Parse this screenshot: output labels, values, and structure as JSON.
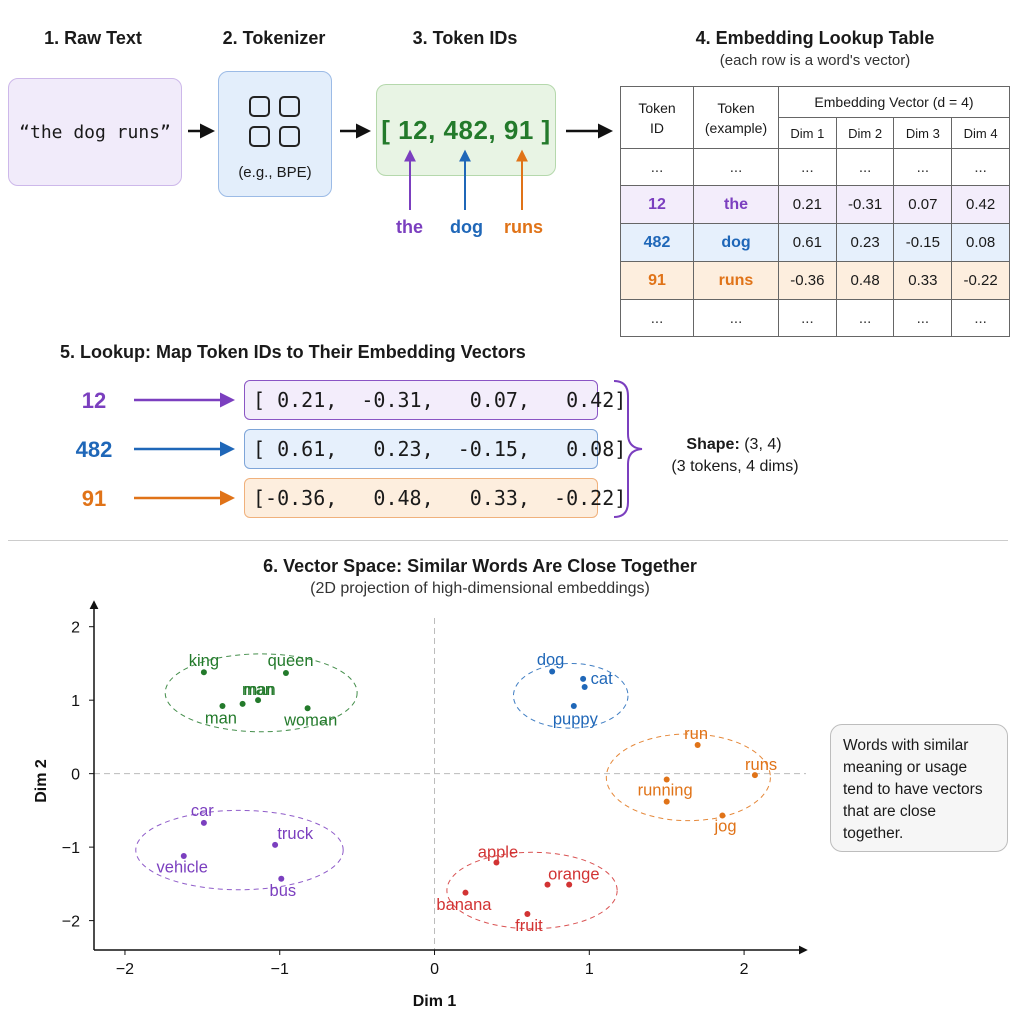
{
  "steps": {
    "raw_text": {
      "title": "1. Raw Text",
      "content": "“the dog runs”"
    },
    "tokenizer": {
      "title": "2. Tokenizer",
      "label": "(e.g., BPE)"
    },
    "token_ids": {
      "title": "3. Token IDs",
      "content": "[ 12, 482, 91 ]",
      "words": [
        "the",
        "dog",
        "runs"
      ]
    },
    "table": {
      "title": "4. Embedding Lookup Table",
      "subtitle": "(each row is a word's vector)",
      "headers": {
        "token_id": "Token ID",
        "token_example": "Token (example)",
        "embedding": "Embedding Vector (d = 4)",
        "dims": [
          "Dim 1",
          "Dim 2",
          "Dim 3",
          "Dim 4"
        ]
      },
      "ellipsis": "...",
      "rows": [
        {
          "id": "12",
          "token": "the",
          "values": [
            "0.21",
            "-0.31",
            "0.07",
            "0.42"
          ]
        },
        {
          "id": "482",
          "token": "dog",
          "values": [
            "0.61",
            "0.23",
            "-0.15",
            "0.08"
          ]
        },
        {
          "id": "91",
          "token": "runs",
          "values": [
            "-0.36",
            "0.48",
            "0.33",
            "-0.22"
          ]
        }
      ]
    },
    "lookup": {
      "title": "5. Lookup: Map Token IDs to Their Embedding Vectors",
      "rows": [
        {
          "id": "12",
          "vector": "[ 0.21,  -0.31,   0.07,   0.42]"
        },
        {
          "id": "482",
          "vector": "[ 0.61,   0.23,  -0.15,   0.08]"
        },
        {
          "id": "91",
          "vector": "[-0.36,   0.48,   0.33,  -0.22]"
        }
      ],
      "shape_label": "Shape:",
      "shape_value": "(3, 4)",
      "shape_note": "(3 tokens, 4 dims)"
    },
    "vector_space": {
      "title": "6. Vector Space: Similar Words Are Close Together",
      "subtitle": "(2D projection of high-dimensional embeddings)",
      "note": "Words with similar meaning or usage tend to have vectors that are close together."
    }
  },
  "colors": {
    "purple": "#7b3fbf",
    "blue": "#1f67b8",
    "orange": "#e07318",
    "green": "#237a2b",
    "red": "#d23333"
  },
  "chart_data": {
    "type": "scatter",
    "xlabel": "Dim 1",
    "ylabel": "Dim 2",
    "xlim": [
      -2.2,
      2.4
    ],
    "ylim": [
      -2.4,
      2.2
    ],
    "xticks": [
      -2,
      -1,
      0,
      1,
      2
    ],
    "yticks": [
      -2,
      -1,
      0,
      1,
      2
    ],
    "tick_labels_x": [
      "−2",
      "−1",
      "0",
      "1",
      "2"
    ],
    "tick_labels_y": [
      "−2",
      "−1",
      "0",
      "1",
      "2"
    ],
    "clusters": [
      {
        "color": "#237a2b",
        "center": [
          -1.12,
          1.1
        ],
        "radius": [
          0.62,
          0.53
        ],
        "points": [
          {
            "label": "king",
            "x": -1.49,
            "y": 1.38,
            "lx": -1.49,
            "ly": 1.53
          },
          {
            "label": "queen",
            "x": -0.96,
            "y": 1.37,
            "lx": -0.93,
            "ly": 1.53
          },
          {
            "label": "man",
            "x": -1.24,
            "y": 0.95,
            "lx": -1.13,
            "ly": 1.14
          },
          {
            "label": "man",
            "x": -1.14,
            "y": 1.0,
            "lx": -1.14,
            "ly": 1.14
          },
          {
            "label": "man",
            "x": -1.37,
            "y": 0.92,
            "lx": -1.38,
            "ly": 0.75
          },
          {
            "label": "woman",
            "x": -0.82,
            "y": 0.89,
            "lx": -0.8,
            "ly": 0.72
          }
        ]
      },
      {
        "color": "#1f67b8",
        "center": [
          0.88,
          1.06
        ],
        "radius": [
          0.37,
          0.44
        ],
        "points": [
          {
            "label": "dog",
            "x": 0.76,
            "y": 1.39,
            "lx": 0.75,
            "ly": 1.55
          },
          {
            "label": "cat",
            "x": 0.96,
            "y": 1.29,
            "lx": 1.08,
            "ly": 1.29
          },
          {
            "label": "cat",
            "x": 0.97,
            "y": 1.18,
            "lx": 1.08,
            "ly": 1.29
          },
          {
            "label": "puppy",
            "x": 0.9,
            "y": 0.92,
            "lx": 0.91,
            "ly": 0.74
          }
        ]
      },
      {
        "color": "#e07318",
        "center": [
          1.64,
          -0.05
        ],
        "radius": [
          0.53,
          0.59
        ],
        "points": [
          {
            "label": "run",
            "x": 1.7,
            "y": 0.39,
            "lx": 1.69,
            "ly": 0.54
          },
          {
            "label": "runs",
            "x": 2.07,
            "y": -0.02,
            "lx": 2.11,
            "ly": 0.12
          },
          {
            "label": "running",
            "x": 1.5,
            "y": -0.08,
            "lx": 1.49,
            "ly": -0.23
          },
          {
            "label": "running",
            "x": 1.5,
            "y": -0.38,
            "lx": 1.49,
            "ly": -0.23
          },
          {
            "label": "jog",
            "x": 1.86,
            "y": -0.57,
            "lx": 1.88,
            "ly": -0.72
          }
        ]
      },
      {
        "color": "#7b3fbf",
        "center": [
          -1.26,
          -1.04
        ],
        "radius": [
          0.67,
          0.54
        ],
        "points": [
          {
            "label": "car",
            "x": -1.49,
            "y": -0.67,
            "lx": -1.5,
            "ly": -0.51
          },
          {
            "label": "truck",
            "x": -1.03,
            "y": -0.97,
            "lx": -0.9,
            "ly": -0.82
          },
          {
            "label": "vehicle",
            "x": -1.62,
            "y": -1.12,
            "lx": -1.63,
            "ly": -1.28
          },
          {
            "label": "bus",
            "x": -0.99,
            "y": -1.43,
            "lx": -0.98,
            "ly": -1.6
          }
        ]
      },
      {
        "color": "#d23333",
        "center": [
          0.63,
          -1.59
        ],
        "radius": [
          0.55,
          0.52
        ],
        "points": [
          {
            "label": "apple",
            "x": 0.4,
            "y": -1.21,
            "lx": 0.41,
            "ly": -1.07
          },
          {
            "label": "orange",
            "x": 0.73,
            "y": -1.51,
            "lx": 0.9,
            "ly": -1.37
          },
          {
            "label": "orange",
            "x": 0.87,
            "y": -1.51,
            "lx": 0.9,
            "ly": -1.37
          },
          {
            "label": "banana",
            "x": 0.2,
            "y": -1.62,
            "lx": 0.19,
            "ly": -1.79
          },
          {
            "label": "fruit",
            "x": 0.6,
            "y": -1.91,
            "lx": 0.61,
            "ly": -2.07
          }
        ]
      }
    ]
  }
}
